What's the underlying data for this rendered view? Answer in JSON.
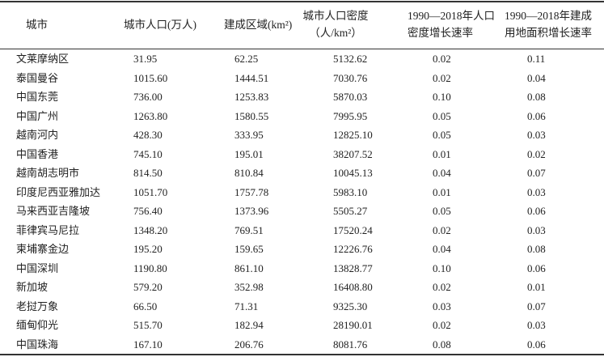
{
  "table": {
    "headers": [
      "城市",
      "城市人口(万人)",
      "建成区域(km²)",
      "城市人口密度\n(人/km²)",
      "1990—2018年人口\n密度增长速率",
      "1990—2018年建成\n用地面积增长速率"
    ],
    "header_lines": [
      [
        "城市"
      ],
      [
        "城市人口(万人)"
      ],
      [
        "建成区域(km²)"
      ],
      [
        "城市人口密度",
        "（人/km²）"
      ],
      [
        "1990—2018年人口",
        "密度增长速率"
      ],
      [
        "1990—2018年建成",
        "用地面积增长速率"
      ]
    ],
    "rows": [
      [
        "文莱摩纳区",
        "31.95",
        "62.25",
        "5132.62",
        "0.02",
        "0.11"
      ],
      [
        "泰国曼谷",
        "1015.60",
        "1444.51",
        "7030.76",
        "0.02",
        "0.04"
      ],
      [
        "中国东莞",
        "736.00",
        "1253.83",
        "5870.03",
        "0.10",
        "0.08"
      ],
      [
        "中国广州",
        "1263.80",
        "1580.55",
        "7995.95",
        "0.05",
        "0.06"
      ],
      [
        "越南河内",
        "428.30",
        "333.95",
        "12825.10",
        "0.05",
        "0.03"
      ],
      [
        "中国香港",
        "745.10",
        "195.01",
        "38207.52",
        "0.01",
        "0.02"
      ],
      [
        "越南胡志明市",
        "814.50",
        "810.84",
        "10045.13",
        "0.04",
        "0.07"
      ],
      [
        "印度尼西亚雅加达",
        "1051.70",
        "1757.78",
        "5983.10",
        "0.01",
        "0.03"
      ],
      [
        "马来西亚吉隆坡",
        "756.40",
        "1373.96",
        "5505.27",
        "0.05",
        "0.06"
      ],
      [
        "菲律宾马尼拉",
        "1348.20",
        "769.51",
        "17520.24",
        "0.02",
        "0.03"
      ],
      [
        "柬埔寨金边",
        "195.20",
        "159.65",
        "12226.76",
        "0.04",
        "0.08"
      ],
      [
        "中国深圳",
        "1190.80",
        "861.10",
        "13828.77",
        "0.10",
        "0.06"
      ],
      [
        "新加坡",
        "579.20",
        "352.98",
        "16408.80",
        "0.02",
        "0.01"
      ],
      [
        "老挝万象",
        "66.50",
        "71.31",
        "9325.30",
        "0.03",
        "0.07"
      ],
      [
        "缅甸仰光",
        "515.70",
        "182.94",
        "28190.01",
        "0.02",
        "0.03"
      ],
      [
        "中国珠海",
        "167.10",
        "206.76",
        "8081.76",
        "0.08",
        "0.06"
      ]
    ]
  }
}
